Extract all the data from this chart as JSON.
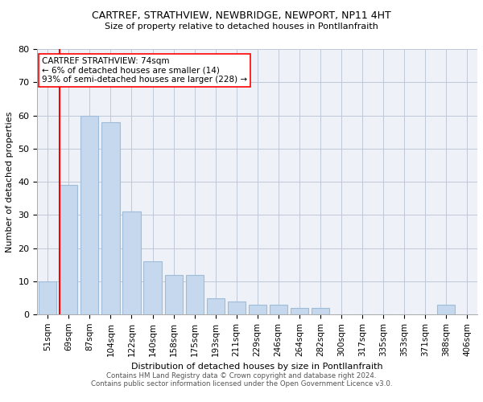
{
  "title1": "CARTREF, STRATHVIEW, NEWBRIDGE, NEWPORT, NP11 4HT",
  "title2": "Size of property relative to detached houses in Pontllanfraith",
  "xlabel": "Distribution of detached houses by size in Pontllanfraith",
  "ylabel": "Number of detached properties",
  "footer1": "Contains HM Land Registry data © Crown copyright and database right 2024.",
  "footer2": "Contains public sector information licensed under the Open Government Licence v3.0.",
  "categories": [
    "51sqm",
    "69sqm",
    "87sqm",
    "104sqm",
    "122sqm",
    "140sqm",
    "158sqm",
    "175sqm",
    "193sqm",
    "211sqm",
    "229sqm",
    "246sqm",
    "264sqm",
    "282sqm",
    "300sqm",
    "317sqm",
    "335sqm",
    "353sqm",
    "371sqm",
    "388sqm",
    "406sqm"
  ],
  "values": [
    10,
    39,
    60,
    58,
    31,
    16,
    12,
    12,
    5,
    4,
    3,
    3,
    2,
    2,
    0,
    0,
    0,
    0,
    0,
    3,
    0
  ],
  "bar_color": "#c5d8ed",
  "bar_edge_color": "#a0bcd8",
  "grid_color": "#c0c8d8",
  "background_color": "#eef2f8",
  "vline_color": "red",
  "annotation_text": "CARTREF STRATHVIEW: 74sqm\n← 6% of detached houses are smaller (14)\n93% of semi-detached houses are larger (228) →",
  "annotation_box_color": "white",
  "annotation_box_edge": "red",
  "ylim": [
    0,
    80
  ],
  "yticks": [
    0,
    10,
    20,
    30,
    40,
    50,
    60,
    70,
    80
  ]
}
